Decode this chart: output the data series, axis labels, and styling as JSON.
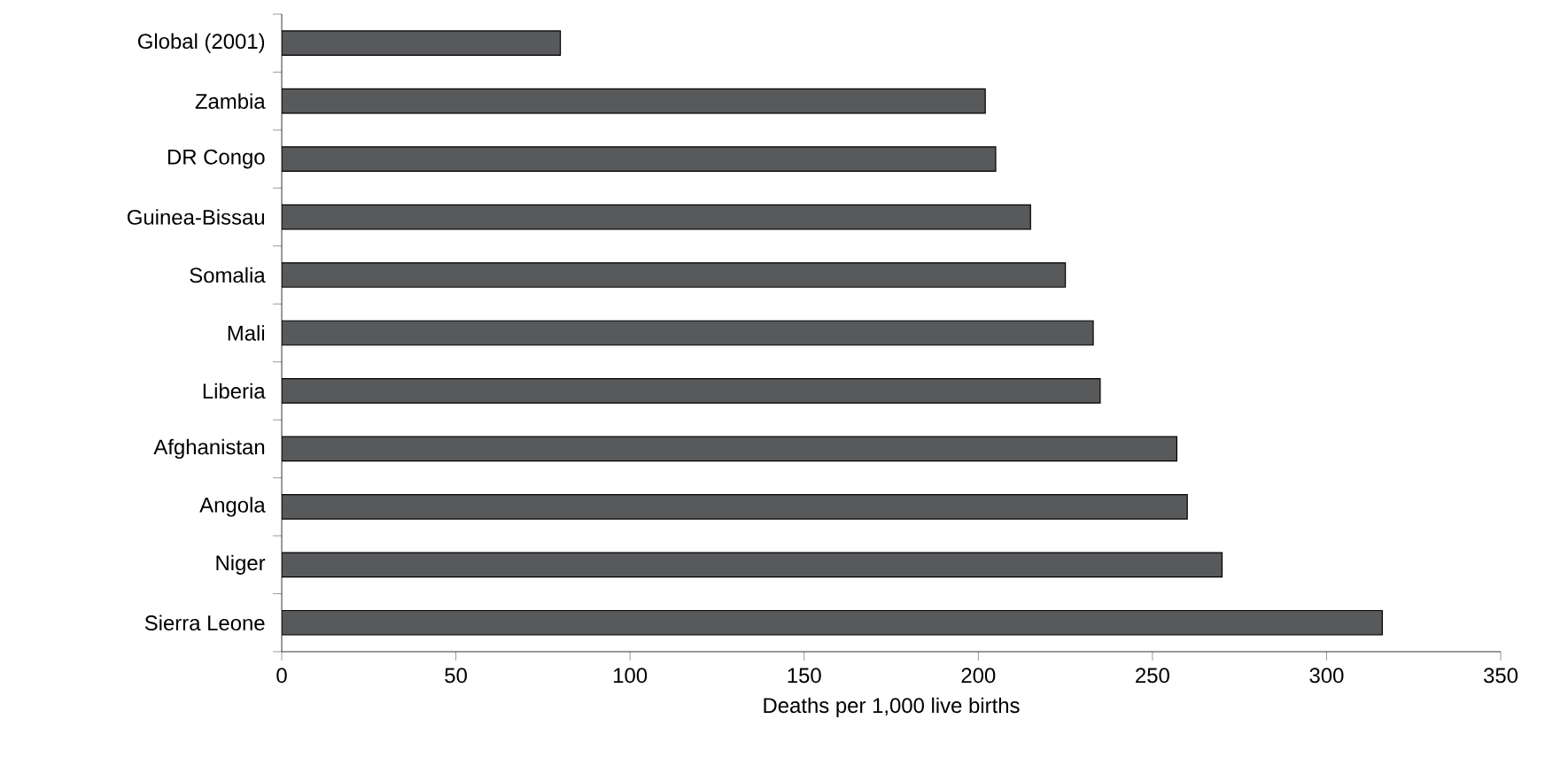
{
  "chart_data": {
    "type": "bar",
    "orientation": "horizontal",
    "xlabel": "Deaths per 1,000 live births",
    "categories": [
      "Global (2001)",
      "Zambia",
      "DR Congo",
      "Guinea-Bissau",
      "Somalia",
      "Mali",
      "Liberia",
      "Afghanistan",
      "Angola",
      "Niger",
      "Sierra Leone"
    ],
    "values": [
      80,
      202,
      205,
      215,
      225,
      233,
      235,
      257,
      260,
      270,
      316
    ],
    "color": "#58595b",
    "xlim": [
      0,
      350
    ],
    "xticks": [
      0,
      50,
      100,
      150,
      200,
      250,
      300,
      350
    ]
  }
}
